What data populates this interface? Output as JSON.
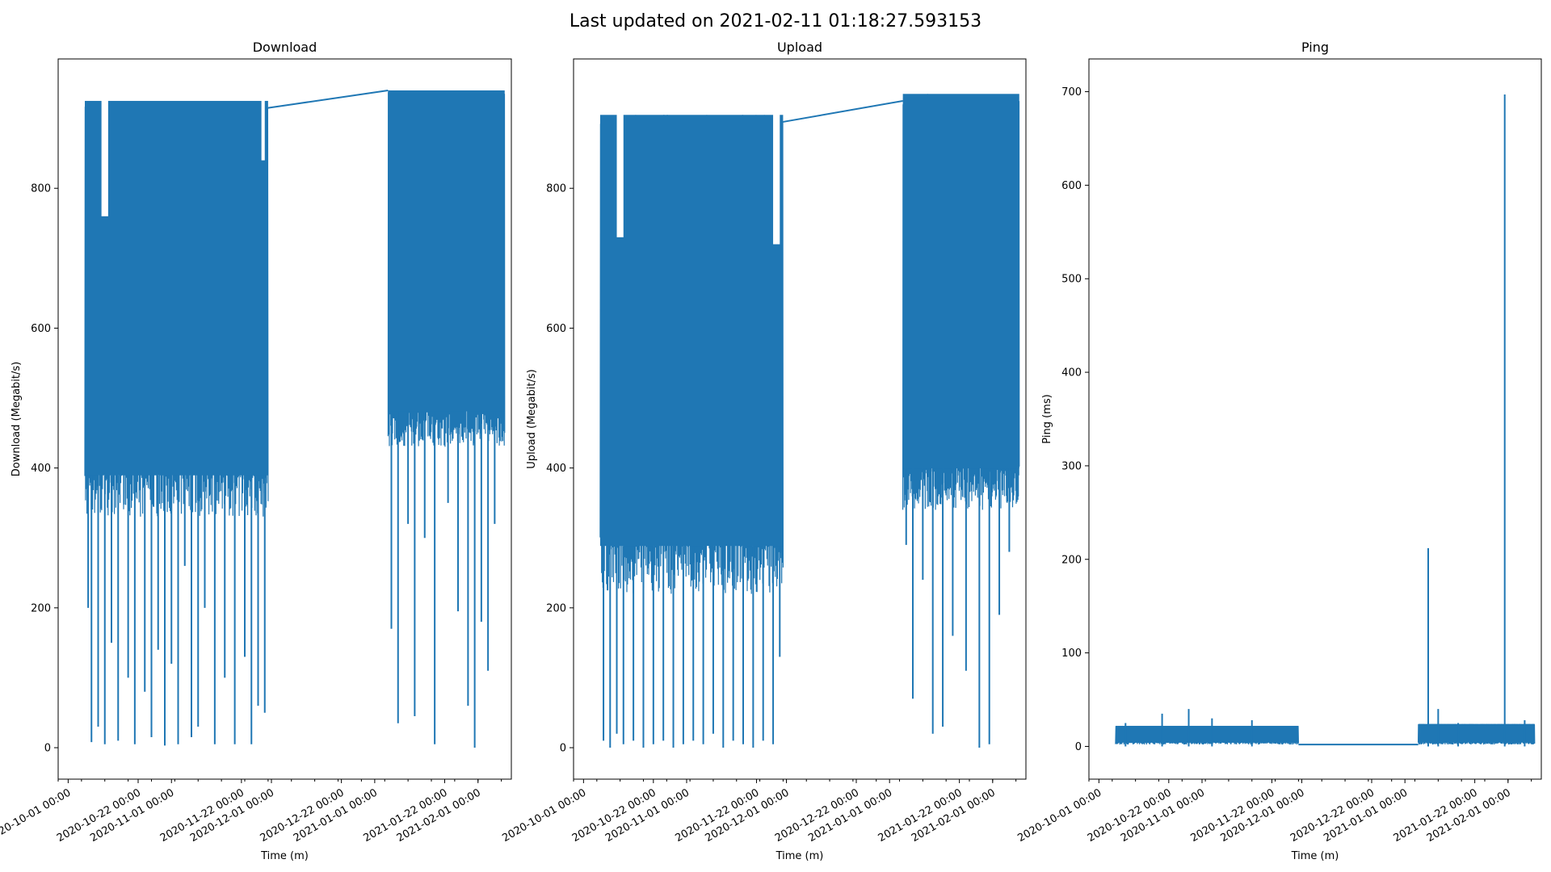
{
  "figure": {
    "title": "Last updated on 2021-02-11 01:18:27.593153"
  },
  "colors": {
    "series": "#1f77b4",
    "axes": "#000000"
  },
  "chart_data": [
    {
      "type": "line",
      "title": "Download",
      "xlabel": "Time (m)",
      "ylabel": "Download (Megabit/s)",
      "x_range": [
        "2020-09-28",
        "2021-02-11"
      ],
      "ylim": [
        -45,
        985
      ],
      "yticks": [
        0,
        200,
        400,
        600,
        800
      ],
      "xticks": [
        "2020-10-01 00:00",
        "2020-10-22 00:00",
        "2020-11-01 00:00",
        "2020-11-22 00:00",
        "2020-12-01 00:00",
        "2020-12-22 00:00",
        "2021-01-01 00:00",
        "2021-01-22 00:00",
        "2021-02-01 00:00"
      ],
      "grid": false,
      "bands": [
        {
          "start": "2020-10-06",
          "end": "2020-11-30",
          "high": 925,
          "low": 330
        },
        {
          "start": "2021-01-05",
          "end": "2021-02-09",
          "high": 940,
          "low": 430
        }
      ],
      "connector": [
        [
          "2020-11-30",
          915
        ],
        [
          "2021-01-05",
          940
        ]
      ],
      "dips": [
        [
          "2020-10-07",
          200
        ],
        [
          "2020-10-08",
          8
        ],
        [
          "2020-10-10",
          30
        ],
        [
          "2020-10-12",
          5
        ],
        [
          "2020-10-14",
          150
        ],
        [
          "2020-10-16",
          10
        ],
        [
          "2020-10-19",
          100
        ],
        [
          "2020-10-21",
          5
        ],
        [
          "2020-10-24",
          80
        ],
        [
          "2020-10-26",
          15
        ],
        [
          "2020-10-28",
          140
        ],
        [
          "2020-10-30",
          3
        ],
        [
          "2020-11-01",
          120
        ],
        [
          "2020-11-03",
          5
        ],
        [
          "2020-11-05",
          260
        ],
        [
          "2020-11-07",
          15
        ],
        [
          "2020-11-09",
          30
        ],
        [
          "2020-11-11",
          200
        ],
        [
          "2020-11-14",
          5
        ],
        [
          "2020-11-17",
          100
        ],
        [
          "2020-11-20",
          5
        ],
        [
          "2020-11-23",
          130
        ],
        [
          "2020-11-25",
          5
        ],
        [
          "2020-11-27",
          60
        ],
        [
          "2020-11-29",
          50
        ],
        [
          "2021-01-06",
          170
        ],
        [
          "2021-01-08",
          35
        ],
        [
          "2021-01-11",
          320
        ],
        [
          "2021-01-13",
          45
        ],
        [
          "2021-01-16",
          300
        ],
        [
          "2021-01-19",
          5
        ],
        [
          "2021-01-23",
          350
        ],
        [
          "2021-01-26",
          195
        ],
        [
          "2021-01-29",
          60
        ],
        [
          "2021-01-31",
          0
        ],
        [
          "2021-02-02",
          180
        ],
        [
          "2021-02-04",
          110
        ],
        [
          "2021-02-06",
          320
        ]
      ],
      "notches": [
        [
          "2020-10-11",
          "2020-10-13",
          760
        ],
        [
          "2020-11-28",
          "2020-11-29",
          840
        ]
      ]
    },
    {
      "type": "line",
      "title": "Upload",
      "xlabel": "Time (m)",
      "ylabel": "Upload (Megabit/s)",
      "x_range": [
        "2020-09-28",
        "2021-02-11"
      ],
      "ylim": [
        -45,
        985
      ],
      "yticks": [
        0,
        200,
        400,
        600,
        800
      ],
      "xticks": [
        "2020-10-01 00:00",
        "2020-10-22 00:00",
        "2020-11-01 00:00",
        "2020-11-22 00:00",
        "2020-12-01 00:00",
        "2020-12-22 00:00",
        "2021-01-01 00:00",
        "2021-01-22 00:00",
        "2021-02-01 00:00"
      ],
      "grid": false,
      "bands": [
        {
          "start": "2020-10-06",
          "end": "2020-11-30",
          "high": 905,
          "low": 220
        },
        {
          "start": "2021-01-05",
          "end": "2021-02-09",
          "high": 935,
          "low": 340
        }
      ],
      "connector": [
        [
          "2020-11-30",
          895
        ],
        [
          "2021-01-05",
          925
        ]
      ],
      "dips": [
        [
          "2020-10-07",
          10
        ],
        [
          "2020-10-09",
          0
        ],
        [
          "2020-10-11",
          20
        ],
        [
          "2020-10-13",
          5
        ],
        [
          "2020-10-16",
          10
        ],
        [
          "2020-10-19",
          0
        ],
        [
          "2020-10-22",
          5
        ],
        [
          "2020-10-25",
          10
        ],
        [
          "2020-10-28",
          0
        ],
        [
          "2020-10-31",
          5
        ],
        [
          "2020-11-03",
          10
        ],
        [
          "2020-11-06",
          5
        ],
        [
          "2020-11-09",
          20
        ],
        [
          "2020-11-12",
          0
        ],
        [
          "2020-11-15",
          10
        ],
        [
          "2020-11-18",
          5
        ],
        [
          "2020-11-21",
          0
        ],
        [
          "2020-11-24",
          10
        ],
        [
          "2020-11-27",
          5
        ],
        [
          "2020-11-29",
          130
        ],
        [
          "2021-01-06",
          290
        ],
        [
          "2021-01-08",
          70
        ],
        [
          "2021-01-11",
          240
        ],
        [
          "2021-01-14",
          20
        ],
        [
          "2021-01-17",
          30
        ],
        [
          "2021-01-20",
          160
        ],
        [
          "2021-01-24",
          110
        ],
        [
          "2021-01-28",
          0
        ],
        [
          "2021-01-31",
          5
        ],
        [
          "2021-02-03",
          190
        ],
        [
          "2021-02-06",
          280
        ]
      ],
      "notches": [
        [
          "2020-10-11",
          "2020-10-13",
          730
        ],
        [
          "2020-11-27",
          "2020-11-29",
          720
        ]
      ]
    },
    {
      "type": "line",
      "title": "Ping",
      "xlabel": "Time (m)",
      "ylabel": "Ping (ms)",
      "x_range": [
        "2020-09-28",
        "2021-02-11"
      ],
      "ylim": [
        -35,
        735
      ],
      "yticks": [
        0,
        100,
        200,
        300,
        400,
        500,
        600,
        700
      ],
      "xticks": [
        "2020-10-01 00:00",
        "2020-10-22 00:00",
        "2020-11-01 00:00",
        "2020-11-22 00:00",
        "2020-12-01 00:00",
        "2020-12-22 00:00",
        "2021-01-01 00:00",
        "2021-01-22 00:00",
        "2021-02-01 00:00"
      ],
      "grid": false,
      "bands": [
        {
          "start": "2020-10-06",
          "end": "2020-11-30",
          "high": 22,
          "low": 2
        },
        {
          "start": "2021-01-05",
          "end": "2021-02-09",
          "high": 24,
          "low": 2
        }
      ],
      "connector": [
        [
          "2020-11-30",
          2
        ],
        [
          "2021-01-05",
          2
        ]
      ],
      "spikes": [
        [
          "2020-10-09",
          25
        ],
        [
          "2020-10-20",
          35
        ],
        [
          "2020-10-28",
          40
        ],
        [
          "2020-11-04",
          30
        ],
        [
          "2020-11-16",
          28
        ],
        [
          "2021-01-08",
          212
        ],
        [
          "2021-01-11",
          40
        ],
        [
          "2021-01-17",
          25
        ],
        [
          "2021-01-31",
          697
        ],
        [
          "2021-02-06",
          28
        ]
      ]
    }
  ]
}
